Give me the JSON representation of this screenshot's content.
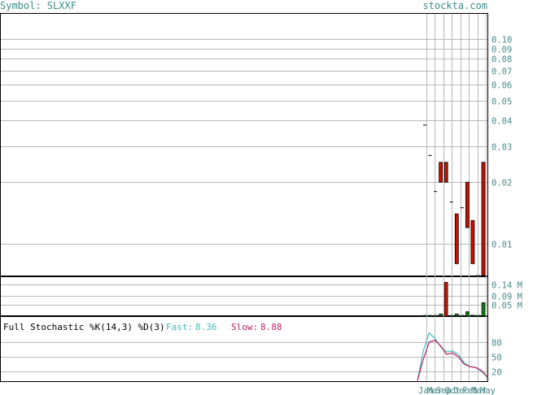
{
  "header": {
    "symbol_label": "Symbol: SLXXF",
    "site": "stockta.com"
  },
  "colors": {
    "bar_down": "#cc1100",
    "bar_up": "#117711",
    "fast_line": "#44bbbb",
    "slow_line": "#bb2266",
    "grid": "#b8b8b8",
    "header_text": "#3d8c8c"
  },
  "stochastic": {
    "title": "Full Stochastic %K(14,3) %D(3)",
    "fast_label": "Fast:",
    "fast_value": "8.36",
    "slow_label": "Slow:",
    "slow_value": "8.88"
  },
  "chart_data": {
    "type": "candlestick",
    "price_axis": {
      "scale": "log",
      "ticks": [
        "0.10",
        "0.09",
        "0.08",
        "0.07",
        "0.06",
        "0.05",
        "0.04",
        "0.03",
        "0.02",
        "0.01"
      ]
    },
    "volume_axis": {
      "ticks": [
        "0.14 M",
        "0.09 M",
        "0.05 M"
      ]
    },
    "stochastic_axis": {
      "ticks": [
        "80",
        "50",
        "20"
      ],
      "ylim": [
        0,
        100
      ]
    },
    "x_labels": [
      "Jan",
      "Mar",
      "Sep",
      "Oct",
      "Dec",
      "Feb",
      "Mar",
      "May"
    ],
    "candles": [
      {
        "open": 0.038,
        "close": 0.038,
        "high": 0.038,
        "low": 0.038,
        "volume": 0.002
      },
      {
        "open": 0.027,
        "close": 0.027,
        "high": 0.027,
        "low": 0.027,
        "volume": 0.002
      },
      {
        "open": 0.018,
        "close": 0.018,
        "high": 0.018,
        "low": 0.018,
        "volume": 0.002
      },
      {
        "open": 0.025,
        "close": 0.02,
        "high": 0.025,
        "low": 0.02,
        "volume": 0.01
      },
      {
        "open": 0.025,
        "close": 0.02,
        "high": 0.025,
        "low": 0.02,
        "volume": 0.15
      },
      {
        "open": 0.016,
        "close": 0.016,
        "high": 0.016,
        "low": 0.016,
        "volume": 0.002
      },
      {
        "open": 0.014,
        "close": 0.008,
        "high": 0.014,
        "low": 0.008,
        "volume": 0.01
      },
      {
        "open": 0.015,
        "close": 0.015,
        "high": 0.015,
        "low": 0.015,
        "volume": 0.003
      },
      {
        "open": 0.02,
        "close": 0.012,
        "high": 0.02,
        "low": 0.012,
        "volume": 0.02
      },
      {
        "open": 0.013,
        "close": 0.008,
        "high": 0.013,
        "low": 0.008,
        "volume": 0.005
      },
      {
        "open": 0.007,
        "close": 0.007,
        "high": 0.007,
        "low": 0.007,
        "volume": 0.002
      },
      {
        "open": 0.025,
        "close": 0.007,
        "high": 0.025,
        "low": 0.007,
        "volume": 0.06
      }
    ],
    "fast": [
      1,
      62,
      99,
      88,
      70,
      60,
      62,
      55,
      38,
      30,
      28,
      20,
      8
    ],
    "slow": [
      1,
      45,
      80,
      84,
      72,
      55,
      58,
      50,
      35,
      30,
      28,
      22,
      9
    ]
  }
}
